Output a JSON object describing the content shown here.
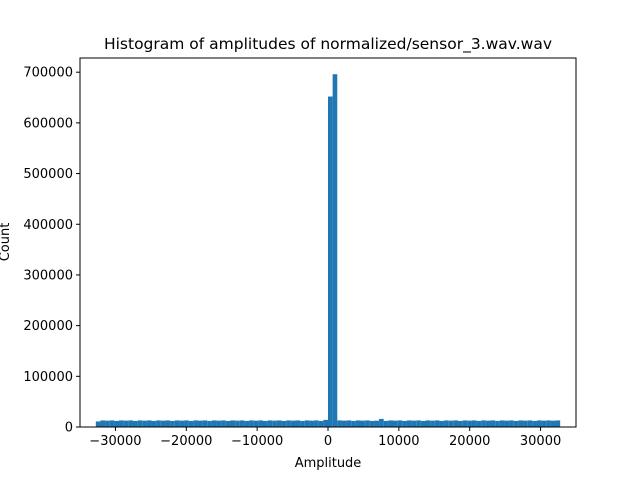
{
  "chart_data": {
    "type": "bar",
    "title": "Histogram of amplitudes of normalized/sensor_3.wav.wav",
    "xlabel": "Amplitude",
    "ylabel": "Count",
    "xlim": [
      -35000,
      35000
    ],
    "ylim": [
      0,
      700000
    ],
    "xticks": [
      -30000,
      -20000,
      -10000,
      0,
      10000,
      20000,
      30000
    ],
    "xtick_labels": [
      "−30000",
      "−20000",
      "−10000",
      "0",
      "10000",
      "20000",
      "30000"
    ],
    "yticks": [
      0,
      100000,
      200000,
      300000,
      400000,
      500000,
      600000,
      700000
    ],
    "ytick_labels": [
      "0",
      "100000",
      "200000",
      "300000",
      "400000",
      "500000",
      "600000",
      "700000"
    ],
    "bins": {
      "start": -32768,
      "end": 32767,
      "count": 100
    },
    "values": [
      11000,
      13000,
      12500,
      13000,
      12000,
      13000,
      12500,
      13000,
      12000,
      13000,
      12500,
      13000,
      12000,
      13000,
      12500,
      13000,
      12000,
      13000,
      12500,
      13000,
      12000,
      13000,
      12500,
      13000,
      12000,
      13000,
      12500,
      13000,
      12000,
      13000,
      12500,
      13000,
      12000,
      13000,
      12500,
      13000,
      12000,
      13000,
      12500,
      13000,
      12000,
      13000,
      12500,
      13000,
      12000,
      13000,
      12500,
      13000,
      12000,
      14000,
      652000,
      696000,
      13000,
      12500,
      13000,
      12000,
      13000,
      12500,
      13000,
      12000,
      12500,
      16000,
      12000,
      13000,
      12500,
      13000,
      12000,
      13000,
      12500,
      13000,
      12000,
      13000,
      12500,
      13000,
      12000,
      13000,
      12500,
      13000,
      12000,
      13000,
      12500,
      13000,
      12000,
      13000,
      12500,
      13000,
      12000,
      13000,
      12500,
      13000,
      12000,
      13000,
      12500,
      13000,
      12000,
      13000,
      12500,
      13000,
      12500,
      13000
    ],
    "bar_color": "#1f77b4",
    "grid": false,
    "legend": false
  }
}
